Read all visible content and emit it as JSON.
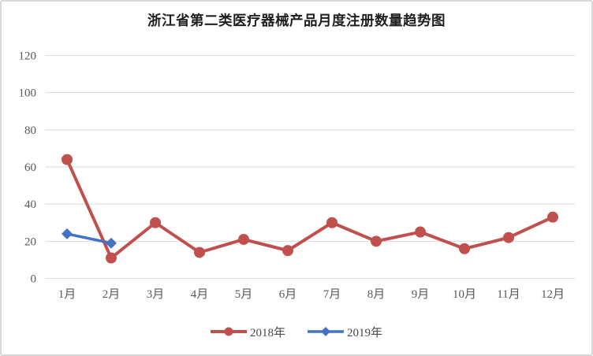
{
  "chart_data": {
    "type": "line",
    "title": "浙江省第二类医疗器械产品月度注册数量趋势图",
    "categories": [
      "1月",
      "2月",
      "3月",
      "4月",
      "5月",
      "6月",
      "7月",
      "8月",
      "9月",
      "10月",
      "11月",
      "12月"
    ],
    "series": [
      {
        "name": "2018年",
        "color": "#c0504d",
        "marker": "circle",
        "line_width": 4,
        "values": [
          64,
          11,
          30,
          14,
          21,
          15,
          30,
          20,
          25,
          16,
          22,
          33
        ]
      },
      {
        "name": "2019年",
        "color": "#4472c4",
        "marker": "diamond",
        "line_width": 3.5,
        "values": [
          24,
          19,
          null,
          null,
          null,
          null,
          null,
          null,
          null,
          null,
          null,
          null
        ]
      }
    ],
    "y_axis": {
      "min": 0,
      "max": 120,
      "step": 20,
      "tick_labels": [
        "0",
        "20",
        "40",
        "60",
        "80",
        "100",
        "120"
      ]
    },
    "xlabel": "",
    "ylabel": "",
    "grid": "horizontal",
    "gridline_color": "#d9d9d9",
    "legend_position": "bottom"
  }
}
